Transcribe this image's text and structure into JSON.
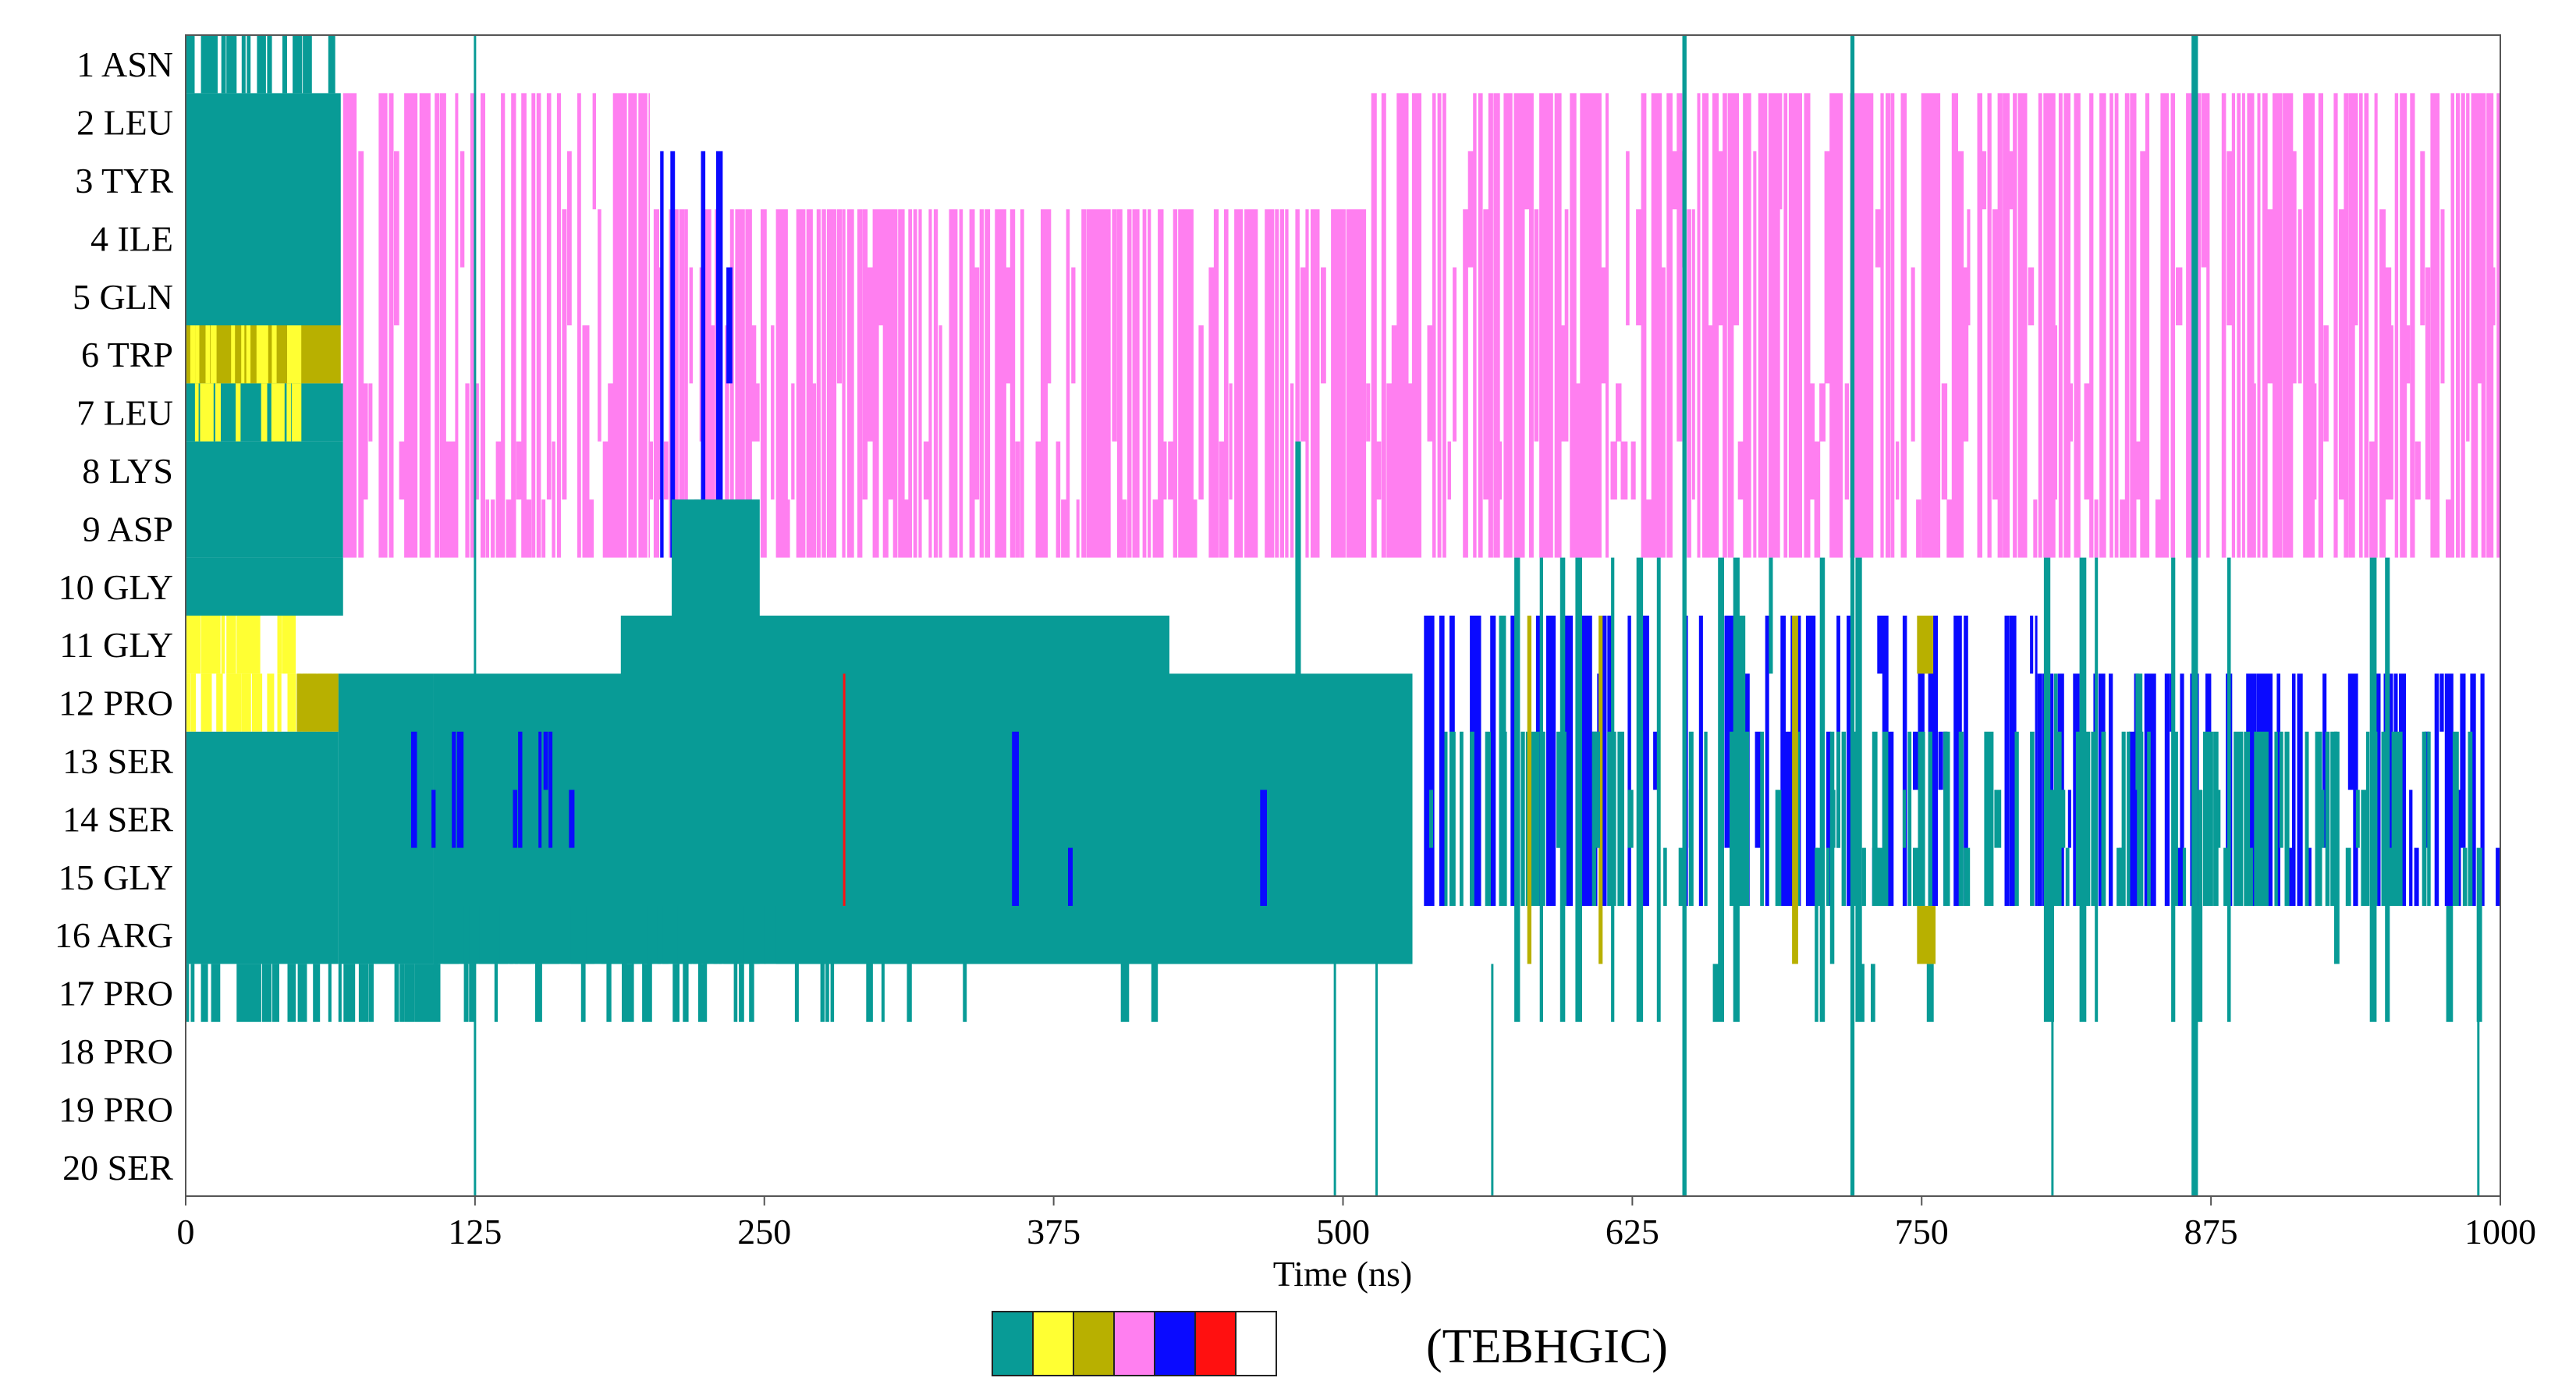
{
  "chart_data": {
    "type": "heatmap",
    "title": "",
    "xlabel": "Time (ns)",
    "ylabel": "",
    "xlim": [
      0,
      1000
    ],
    "x_ticks": [
      0,
      125,
      250,
      375,
      500,
      625,
      750,
      875,
      1000
    ],
    "residues": [
      "1 ASN",
      "2 LEU",
      "3 TYR",
      "4 ILE",
      "5 GLN",
      "6 TRP",
      "7 LEU",
      "8 LYS",
      "9 ASP",
      "10 GLY",
      "11 GLY",
      "12 PRO",
      "13 SER",
      "14 SER",
      "15 GLY",
      "16 ARG",
      "17 PRO",
      "18 PRO",
      "19 PRO",
      "20 SER"
    ],
    "legend": {
      "label": "(TEBHGIC)",
      "codes": [
        "T",
        "E",
        "B",
        "H",
        "G",
        "I",
        "C"
      ],
      "colors": [
        "#089b96",
        "#ffff33",
        "#b8b000",
        "#ff7ff0",
        "#0a0aff",
        "#ff1010",
        "#ffffff"
      ]
    },
    "background_code": "C",
    "segments": [
      {
        "code": "T",
        "rows": [
          0,
          0
        ],
        "t": [
          0,
          65
        ],
        "density": 0.6
      },
      {
        "code": "T",
        "rows": [
          1,
          4
        ],
        "t": [
          0,
          67
        ]
      },
      {
        "code": "B",
        "rows": [
          5,
          5
        ],
        "t": [
          0,
          67
        ]
      },
      {
        "code": "E",
        "rows": [
          5,
          5
        ],
        "t": [
          2,
          50
        ],
        "density": 0.55
      },
      {
        "code": "T",
        "rows": [
          6,
          6
        ],
        "t": [
          0,
          68
        ]
      },
      {
        "code": "E",
        "rows": [
          6,
          6
        ],
        "t": [
          4,
          50
        ],
        "density": 0.55
      },
      {
        "code": "T",
        "rows": [
          7,
          8
        ],
        "t": [
          0,
          68
        ]
      },
      {
        "code": "T",
        "rows": [
          9,
          9
        ],
        "t": [
          0,
          68
        ]
      },
      {
        "code": "E",
        "rows": [
          10,
          10
        ],
        "t": [
          0,
          48
        ],
        "density": 0.8
      },
      {
        "code": "E",
        "rows": [
          11,
          11
        ],
        "t": [
          0,
          66
        ],
        "density": 0.8
      },
      {
        "code": "B",
        "rows": [
          11,
          11
        ],
        "t": [
          48,
          66
        ]
      },
      {
        "code": "T",
        "rows": [
          11,
          15
        ],
        "t": [
          66,
          107
        ]
      },
      {
        "code": "T",
        "rows": [
          12,
          15
        ],
        "t": [
          0,
          66
        ]
      },
      {
        "code": "T",
        "rows": [
          16,
          16
        ],
        "t": [
          0,
          107
        ],
        "density": 0.55
      },
      {
        "code": "H",
        "rows": [
          1,
          8
        ],
        "t": [
          68,
          200
        ],
        "density": 0.93
      },
      {
        "code": "H",
        "rows": [
          3,
          8
        ],
        "t": [
          200,
          510
        ],
        "density": 0.93
      },
      {
        "code": "H",
        "rows": [
          1,
          8
        ],
        "t": [
          510,
          1000
        ],
        "density": 0.93
      },
      {
        "code": "H",
        "rows": [
          1,
          2
        ],
        "t": [
          875,
          885
        ],
        "density": 0.15
      },
      {
        "code": "G",
        "rows": [
          2,
          8
        ],
        "t": [
          205,
          245
        ],
        "density": 0.22
      },
      {
        "code": "T",
        "rows": [
          8,
          9
        ],
        "t": [
          210,
          248
        ]
      },
      {
        "code": "T",
        "rows": [
          10,
          14
        ],
        "t": [
          188,
          425
        ]
      },
      {
        "code": "T",
        "rows": [
          11,
          15
        ],
        "t": [
          107,
          530
        ]
      },
      {
        "code": "T",
        "rows": [
          15,
          15
        ],
        "t": [
          255,
          530
        ]
      },
      {
        "code": "T",
        "rows": [
          15,
          15
        ],
        "t": [
          107,
          250
        ],
        "density": 0.8
      },
      {
        "code": "G",
        "rows": [
          11,
          14
        ],
        "t": [
          800,
          1000
        ],
        "density": 0.55
      },
      {
        "code": "G",
        "rows": [
          10,
          14
        ],
        "t": [
          535,
          800
        ],
        "density": 0.55
      },
      {
        "code": "T",
        "rows": [
          12,
          14
        ],
        "t": [
          535,
          1000
        ],
        "density": 0.45
      },
      {
        "code": "G",
        "rows": [
          12,
          13
        ],
        "t": [
          82,
          170
        ],
        "density": 0.2
      },
      {
        "code": "G",
        "rows": [
          12,
          14
        ],
        "t": [
          335,
          420
        ],
        "density": 0.15
      },
      {
        "code": "G",
        "rows": [
          12,
          14
        ],
        "t": [
          440,
          470
        ],
        "density": 0.2
      },
      {
        "code": "I",
        "rows": [
          11,
          14
        ],
        "t": [
          284,
          285
        ]
      },
      {
        "code": "B",
        "rows": [
          10,
          15
        ],
        "t": [
          540,
          770
        ],
        "density": 0.06
      },
      {
        "code": "T",
        "rows": [
          9,
          16
        ],
        "t": [
          530,
          1000
        ],
        "density": 0.12
      },
      {
        "code": "T",
        "rows": [
          16,
          16
        ],
        "t": [
          107,
          420
        ],
        "density": 0.22
      },
      {
        "code": "T",
        "rows": [
          0,
          19
        ],
        "t": [
          68,
          1000
        ],
        "density": 0.018
      }
    ],
    "highlight_lines": [
      {
        "code": "T",
        "rows": [
          0,
          19
        ],
        "t": [
          124.5,
          125.5
        ]
      },
      {
        "code": "T",
        "rows": [
          16,
          19
        ],
        "t": [
          496,
          497
        ]
      },
      {
        "code": "T",
        "rows": [
          16,
          19
        ],
        "t": [
          514,
          515
        ]
      },
      {
        "code": "T",
        "rows": [
          16,
          19
        ],
        "t": [
          564,
          565
        ]
      },
      {
        "code": "T",
        "rows": [
          16,
          19
        ],
        "t": [
          806,
          807
        ]
      },
      {
        "code": "T",
        "rows": [
          16,
          19
        ],
        "t": [
          990,
          991
        ]
      },
      {
        "code": "B",
        "rows": [
          15,
          15
        ],
        "t": [
          748,
          756
        ]
      },
      {
        "code": "B",
        "rows": [
          10,
          10
        ],
        "t": [
          748,
          755
        ]
      }
    ]
  }
}
